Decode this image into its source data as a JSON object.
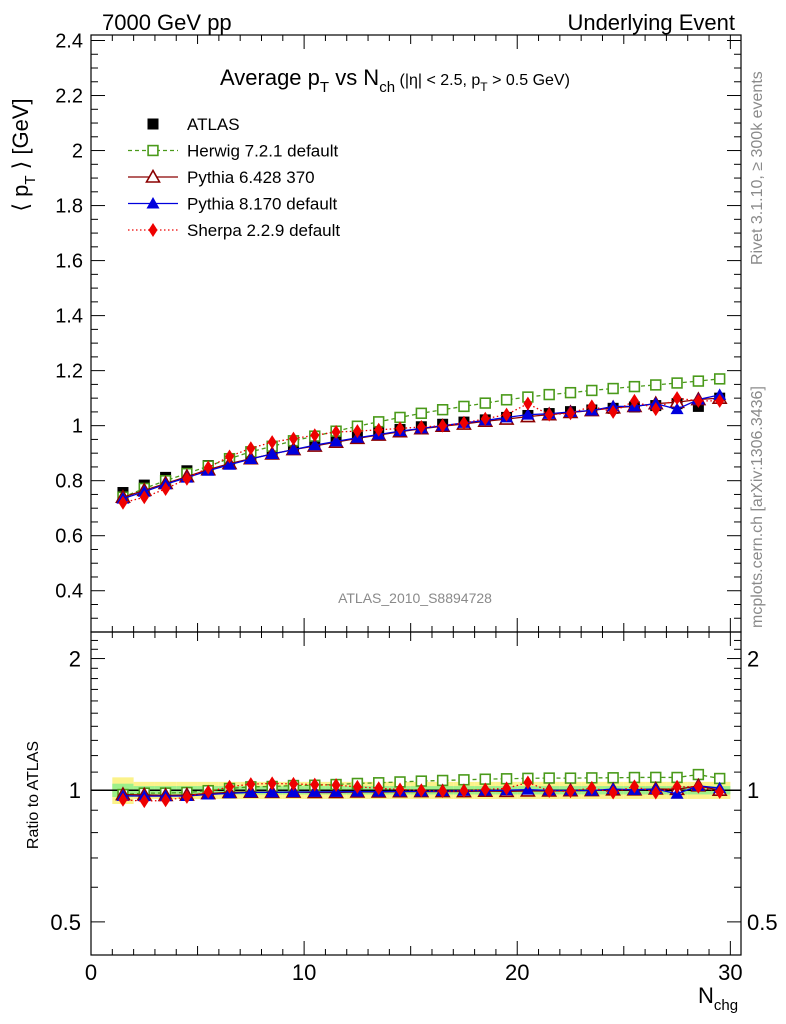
{
  "header": {
    "left": "7000 GeV pp",
    "right": "Underlying Event"
  },
  "side_text": {
    "top": "Rivet 3.1.10, ≥ 300k events",
    "bottom": "mcplots.cern.ch [arXiv:1306.3436]"
  },
  "watermark": "ATLAS_2010_S8894728",
  "chart_data": {
    "type": "line",
    "title_parts": {
      "main": "Average p",
      "sub1": "T",
      "mid": " vs N",
      "sub2": "ch",
      "cut1": " (|η| < 2.5, p",
      "sub3": "T",
      "cut2": " > 0.5 GeV)"
    },
    "ylabel_parts": {
      "pre": "⟨ p",
      "sub": "T",
      "post": " ⟩ [GeV]"
    },
    "xlabel_parts": {
      "main": "N",
      "sub": "chg"
    },
    "ratio_ylabel": "Ratio to ATLAS",
    "xlim": [
      0,
      30.5
    ],
    "ylim": [
      0.25,
      2.42
    ],
    "ratio_ylim": [
      0.42,
      2.3
    ],
    "x_ticks": [
      0,
      10,
      20,
      30
    ],
    "x_tick_labels": [
      "0",
      "10",
      "20",
      "30"
    ],
    "y_ticks": [
      0.4,
      0.6,
      0.8,
      1,
      1.2,
      1.4,
      1.6,
      1.8,
      2,
      2.2,
      2.4
    ],
    "y_tick_labels": [
      "0.4",
      "0.6",
      "0.8",
      "1",
      "1.2",
      "1.4",
      "1.6",
      "1.8",
      "2",
      "2.2",
      "2.4"
    ],
    "ratio_ticks": [
      0.5,
      1,
      2
    ],
    "ratio_tick_labels": [
      "0.5",
      "1",
      "2"
    ],
    "x": [
      1.5,
      2.5,
      3.5,
      4.5,
      5.5,
      6.5,
      7.5,
      8.5,
      9.5,
      10.5,
      11.5,
      12.5,
      13.5,
      14.5,
      15.5,
      16.5,
      17.5,
      18.5,
      19.5,
      20.5,
      21.5,
      22.5,
      23.5,
      24.5,
      25.5,
      26.5,
      27.5,
      28.5,
      29.5
    ],
    "legend": [
      {
        "name": "ATLAS",
        "color": "#000000",
        "marker": "square-filled",
        "dash": "none"
      },
      {
        "name": "Herwig 7.2.1 default",
        "color": "#4a9a1a",
        "marker": "square-open",
        "dash": "4,3"
      },
      {
        "name": "Pythia 6.428 370",
        "color": "#8b0000",
        "marker": "triangle-open",
        "dash": "solid"
      },
      {
        "name": "Pythia 8.170 default",
        "color": "#0000dd",
        "marker": "triangle-filled",
        "dash": "solid"
      },
      {
        "name": "Sherpa 2.2.9 default",
        "color": "#ee0000",
        "marker": "diamond-filled",
        "dash": "1.5,2.5"
      }
    ],
    "series": [
      {
        "name": "ATLAS",
        "values": [
          0.757,
          0.784,
          0.812,
          0.836,
          0.855,
          0.872,
          0.889,
          0.907,
          0.922,
          0.937,
          0.951,
          0.963,
          0.975,
          0.986,
          0.996,
          1.005,
          1.013,
          1.021,
          1.03,
          1.037,
          1.044,
          1.051,
          1.057,
          1.063,
          1.068,
          1.073,
          1.08,
          1.07,
          1.1
        ]
      },
      {
        "name": "Herwig 7.2.1 default",
        "values": [
          0.74,
          0.772,
          0.8,
          0.826,
          0.853,
          0.88,
          0.905,
          0.925,
          0.945,
          0.962,
          0.98,
          0.998,
          1.014,
          1.03,
          1.045,
          1.058,
          1.07,
          1.082,
          1.094,
          1.104,
          1.113,
          1.12,
          1.128,
          1.135,
          1.142,
          1.148,
          1.155,
          1.162,
          1.17
        ]
      },
      {
        "name": "Pythia 6.428 370",
        "values": [
          0.74,
          0.765,
          0.79,
          0.815,
          0.84,
          0.862,
          0.88,
          0.897,
          0.913,
          0.926,
          0.94,
          0.954,
          0.966,
          0.978,
          0.989,
          0.998,
          1.006,
          1.016,
          1.024,
          1.033,
          1.04,
          1.048,
          1.055,
          1.065,
          1.07,
          1.08,
          1.085,
          1.095,
          1.1
        ]
      },
      {
        "name": "Pythia 8.170 default",
        "values": [
          0.735,
          0.76,
          0.787,
          0.811,
          0.836,
          0.858,
          0.879,
          0.897,
          0.913,
          0.929,
          0.943,
          0.956,
          0.968,
          0.98,
          0.99,
          1.0,
          1.01,
          1.019,
          1.03,
          1.04,
          1.043,
          1.05,
          1.055,
          1.07,
          1.07,
          1.08,
          1.06,
          1.095,
          1.112
        ]
      },
      {
        "name": "Sherpa 2.2.9 default",
        "values": [
          0.72,
          0.74,
          0.77,
          0.807,
          0.848,
          0.888,
          0.918,
          0.94,
          0.953,
          0.965,
          0.977,
          0.98,
          0.985,
          0.99,
          0.995,
          1.0,
          1.01,
          1.025,
          1.04,
          1.08,
          1.04,
          1.045,
          1.07,
          1.05,
          1.09,
          1.06,
          1.1,
          1.09,
          1.09
        ]
      }
    ]
  }
}
